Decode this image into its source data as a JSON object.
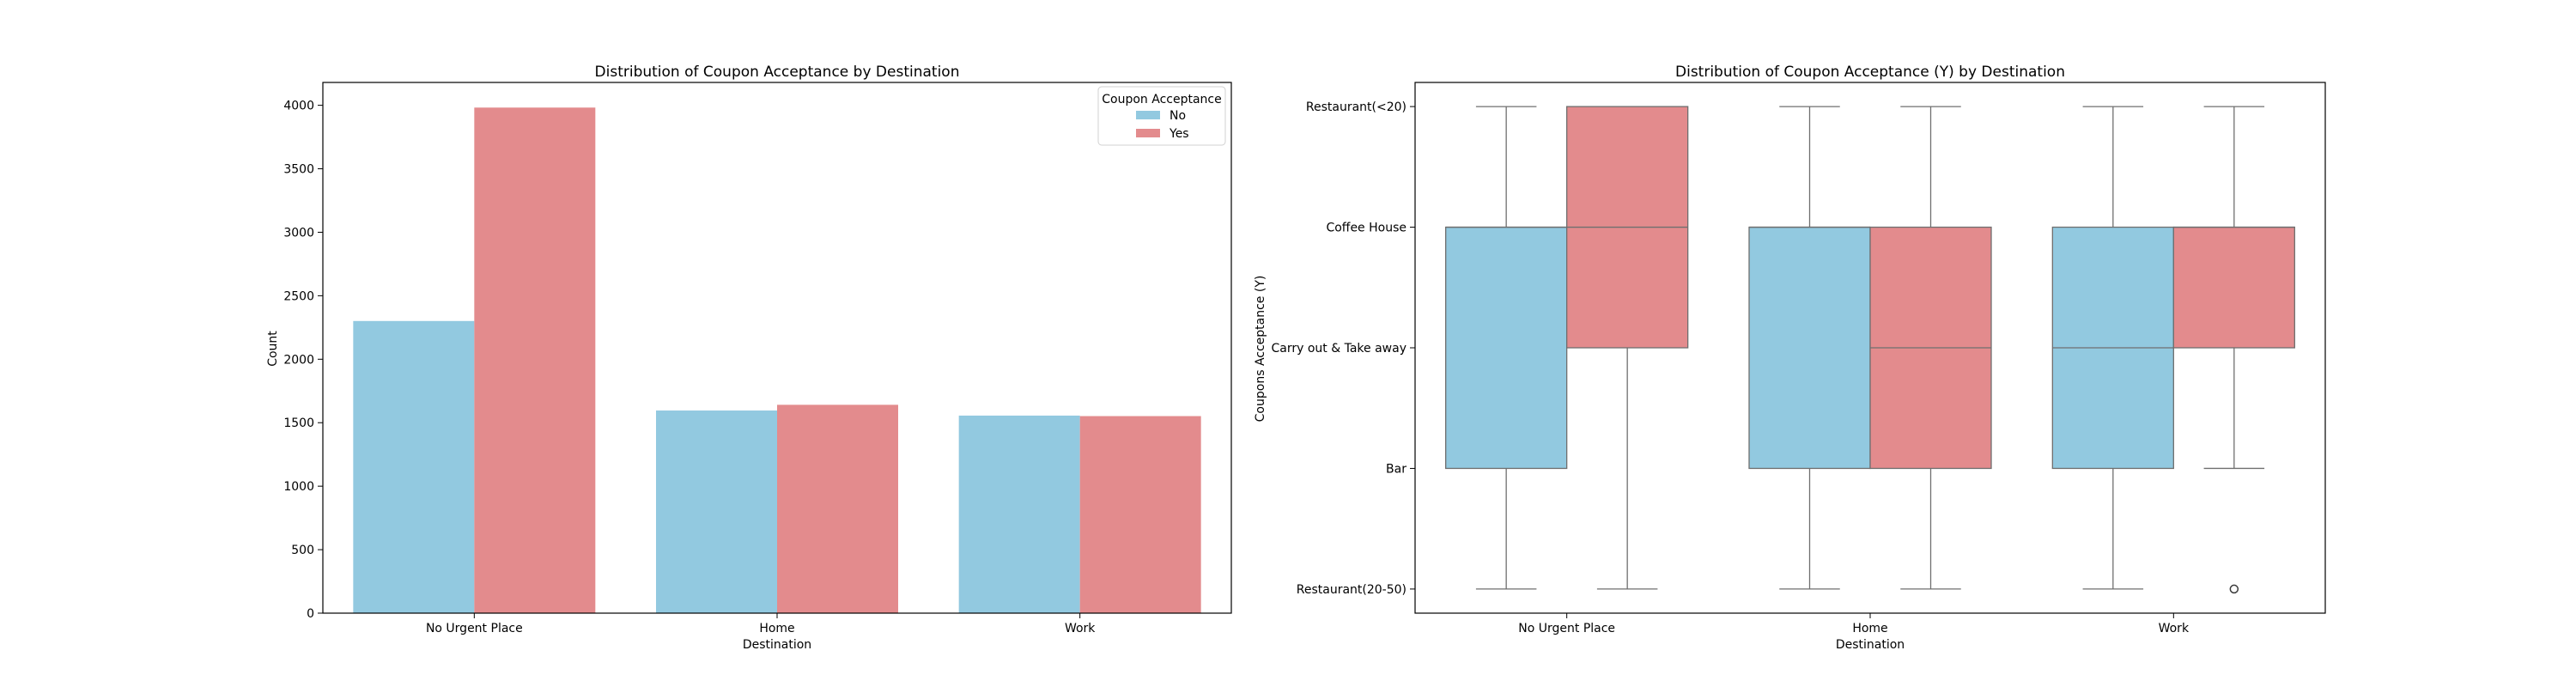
{
  "colors": {
    "no": "#92C9E0",
    "yes": "#E38B8D",
    "box_line": "#6f6f6f",
    "axis": "#000000"
  },
  "chart_data": [
    {
      "type": "bar",
      "title": "Distribution of Coupon Acceptance by Destination",
      "xlabel": "Destination",
      "ylabel": "Count",
      "categories": [
        "No Urgent Place",
        "Home",
        "Work"
      ],
      "series": [
        {
          "name": "No",
          "values": [
            2301,
            1596,
            1556
          ]
        },
        {
          "name": "Yes",
          "values": [
            3982,
            1641,
            1552
          ]
        }
      ],
      "ylim": [
        0,
        4180
      ],
      "yticks": [
        0,
        500,
        1000,
        1500,
        2000,
        2500,
        3000,
        3500,
        4000
      ],
      "legend": {
        "title": "Coupon Acceptance",
        "position": "top-right"
      },
      "grid": false
    },
    {
      "type": "box",
      "title": "Distribution of Coupon Acceptance (Y) by Destination",
      "xlabel": "Destination",
      "ylabel": "Coupons Acceptance (Y)",
      "categories": [
        "No Urgent Place",
        "Home",
        "Work"
      ],
      "y_levels": [
        "Restaurant(<20)",
        "Coffee House",
        "Carry out & Take away",
        "Bar",
        "Restaurant(20-50)"
      ],
      "ylim": [
        -0.2,
        4.2
      ],
      "grid": false,
      "series": [
        {
          "name": "No",
          "boxes": [
            {
              "whislo": 0,
              "q1": 1,
              "median": 1,
              "q3": 3,
              "whishi": 4,
              "fliers": []
            },
            {
              "whislo": 0,
              "q1": 1,
              "median": 1,
              "q3": 3,
              "whishi": 4,
              "fliers": []
            },
            {
              "whislo": 0,
              "q1": 1,
              "median": 2,
              "q3": 3,
              "whishi": 4,
              "fliers": []
            }
          ]
        },
        {
          "name": "Yes",
          "boxes": [
            {
              "whislo": 0,
              "q1": 0,
              "median": 1,
              "q3": 2,
              "whishi": 4,
              "fliers": []
            },
            {
              "whislo": 0,
              "q1": 1,
              "median": 2,
              "q3": 3,
              "whishi": 4,
              "fliers": []
            },
            {
              "whislo": 0,
              "q1": 1,
              "median": 1,
              "q3": 2,
              "whishi": 3,
              "fliers": [
                4
              ]
            }
          ]
        }
      ]
    }
  ]
}
